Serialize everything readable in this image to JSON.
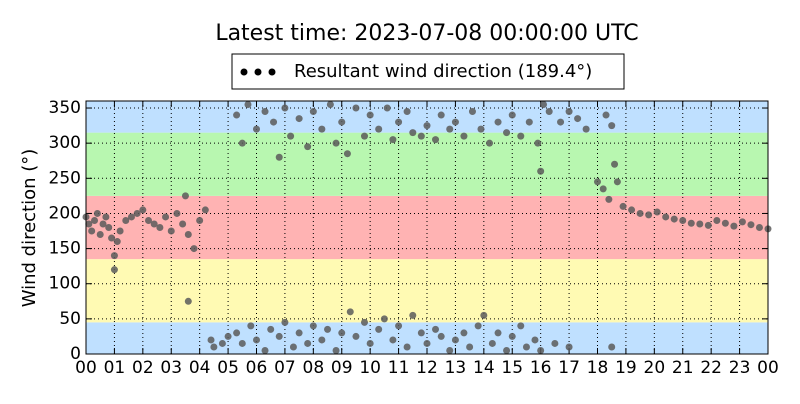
{
  "chart_data": {
    "type": "scatter",
    "title": "Latest time: 2023-07-08 00:00:00 UTC",
    "y_label": "Wind direction (°)",
    "xlim": [
      0,
      24
    ],
    "ylim": [
      0,
      360
    ],
    "xticks": [
      {
        "value": 0,
        "label": "00"
      },
      {
        "value": 1,
        "label": "01"
      },
      {
        "value": 2,
        "label": "02"
      },
      {
        "value": 3,
        "label": "03"
      },
      {
        "value": 4,
        "label": "04"
      },
      {
        "value": 5,
        "label": "05"
      },
      {
        "value": 6,
        "label": "06"
      },
      {
        "value": 7,
        "label": "07"
      },
      {
        "value": 8,
        "label": "08"
      },
      {
        "value": 9,
        "label": "09"
      },
      {
        "value": 10,
        "label": "10"
      },
      {
        "value": 11,
        "label": "11"
      },
      {
        "value": 12,
        "label": "12"
      },
      {
        "value": 13,
        "label": "13"
      },
      {
        "value": 14,
        "label": "14"
      },
      {
        "value": 15,
        "label": "15"
      },
      {
        "value": 16,
        "label": "16"
      },
      {
        "value": 17,
        "label": "17"
      },
      {
        "value": 18,
        "label": "18"
      },
      {
        "value": 19,
        "label": "19"
      },
      {
        "value": 20,
        "label": "20"
      },
      {
        "value": 21,
        "label": "21"
      },
      {
        "value": 22,
        "label": "22"
      },
      {
        "value": 23,
        "label": "23"
      },
      {
        "value": 24,
        "label": "00"
      }
    ],
    "yticks": [
      0,
      50,
      100,
      150,
      200,
      250,
      300,
      350
    ],
    "grid": true,
    "legend": "top",
    "bands": [
      {
        "from": 0,
        "to": 45,
        "color": "#bfe0ff"
      },
      {
        "from": 45,
        "to": 135,
        "color": "#fffab3"
      },
      {
        "from": 135,
        "to": 225,
        "color": "#ffb3b3"
      },
      {
        "from": 225,
        "to": 315,
        "color": "#b8f7b0"
      },
      {
        "from": 315,
        "to": 360,
        "color": "#bfe0ff"
      }
    ],
    "x": [
      0.0,
      0.1,
      0.2,
      0.3,
      0.4,
      0.5,
      0.6,
      0.7,
      0.8,
      0.9,
      1.0,
      1.0,
      1.1,
      1.2,
      1.4,
      1.6,
      1.8,
      2.0,
      2.2,
      2.4,
      2.6,
      2.8,
      3.0,
      3.2,
      3.4,
      3.5,
      3.6,
      3.6,
      3.8,
      4.0,
      4.2,
      4.4,
      4.5,
      4.8,
      5.0,
      5.3,
      5.5,
      5.8,
      6.0,
      6.3,
      6.5,
      6.8,
      7.0,
      7.3,
      7.5,
      7.8,
      8.0,
      8.3,
      8.5,
      8.8,
      9.0,
      9.3,
      9.5,
      9.8,
      10.0,
      10.3,
      10.5,
      10.8,
      11.0,
      11.3,
      11.5,
      11.8,
      12.0,
      12.3,
      12.5,
      12.8,
      13.0,
      13.3,
      13.5,
      13.8,
      14.0,
      14.3,
      14.5,
      14.8,
      15.0,
      15.3,
      15.5,
      15.8,
      16.0,
      16.5,
      17.0,
      18.5,
      5.3,
      5.5,
      5.7,
      6.0,
      6.3,
      6.6,
      6.8,
      7.0,
      7.2,
      7.5,
      7.8,
      8.0,
      8.3,
      8.6,
      8.8,
      9.0,
      9.2,
      9.5,
      9.8,
      10.0,
      10.3,
      10.6,
      10.8,
      11.0,
      11.3,
      11.5,
      11.8,
      12.0,
      12.3,
      12.5,
      12.8,
      13.0,
      13.3,
      13.6,
      13.9,
      14.2,
      14.5,
      14.8,
      15.0,
      15.3,
      15.6,
      15.9,
      16.1,
      16.3,
      16.0,
      16.7,
      17.0,
      17.3,
      17.6,
      18.3,
      18.5,
      18.6,
      18.0,
      18.2,
      18.4,
      18.7,
      18.9,
      19.2,
      19.5,
      19.8,
      20.1,
      20.4,
      20.7,
      21.0,
      21.3,
      21.6,
      21.9,
      22.2,
      22.5,
      22.8,
      23.1,
      23.4,
      23.7,
      24.0
    ],
    "series": [
      {
        "name": "Resultant wind direction (189.4°)",
        "color": "#5a5a5a",
        "values": [
          195,
          185,
          175,
          190,
          200,
          170,
          185,
          195,
          180,
          165,
          120,
          140,
          160,
          175,
          190,
          195,
          200,
          205,
          190,
          185,
          180,
          195,
          175,
          200,
          185,
          225,
          170,
          75,
          150,
          190,
          205,
          20,
          10,
          15,
          25,
          30,
          15,
          40,
          20,
          5,
          35,
          25,
          45,
          10,
          30,
          15,
          40,
          20,
          35,
          5,
          30,
          60,
          25,
          45,
          15,
          35,
          50,
          20,
          40,
          10,
          55,
          30,
          15,
          35,
          25,
          5,
          20,
          30,
          10,
          40,
          55,
          15,
          30,
          5,
          25,
          40,
          10,
          20,
          5,
          15,
          10,
          10,
          340,
          300,
          355,
          320,
          345,
          330,
          280,
          350,
          310,
          335,
          295,
          345,
          320,
          355,
          300,
          330,
          285,
          350,
          310,
          340,
          320,
          350,
          305,
          330,
          345,
          315,
          310,
          325,
          305,
          340,
          320,
          330,
          310,
          345,
          320,
          300,
          330,
          315,
          340,
          310,
          330,
          300,
          355,
          345,
          260,
          330,
          345,
          335,
          320,
          340,
          325,
          270,
          245,
          235,
          220,
          245,
          210,
          205,
          200,
          198,
          202,
          195,
          192,
          190,
          186,
          185,
          183,
          190,
          186,
          182,
          188,
          184,
          180,
          178
        ]
      }
    ]
  }
}
